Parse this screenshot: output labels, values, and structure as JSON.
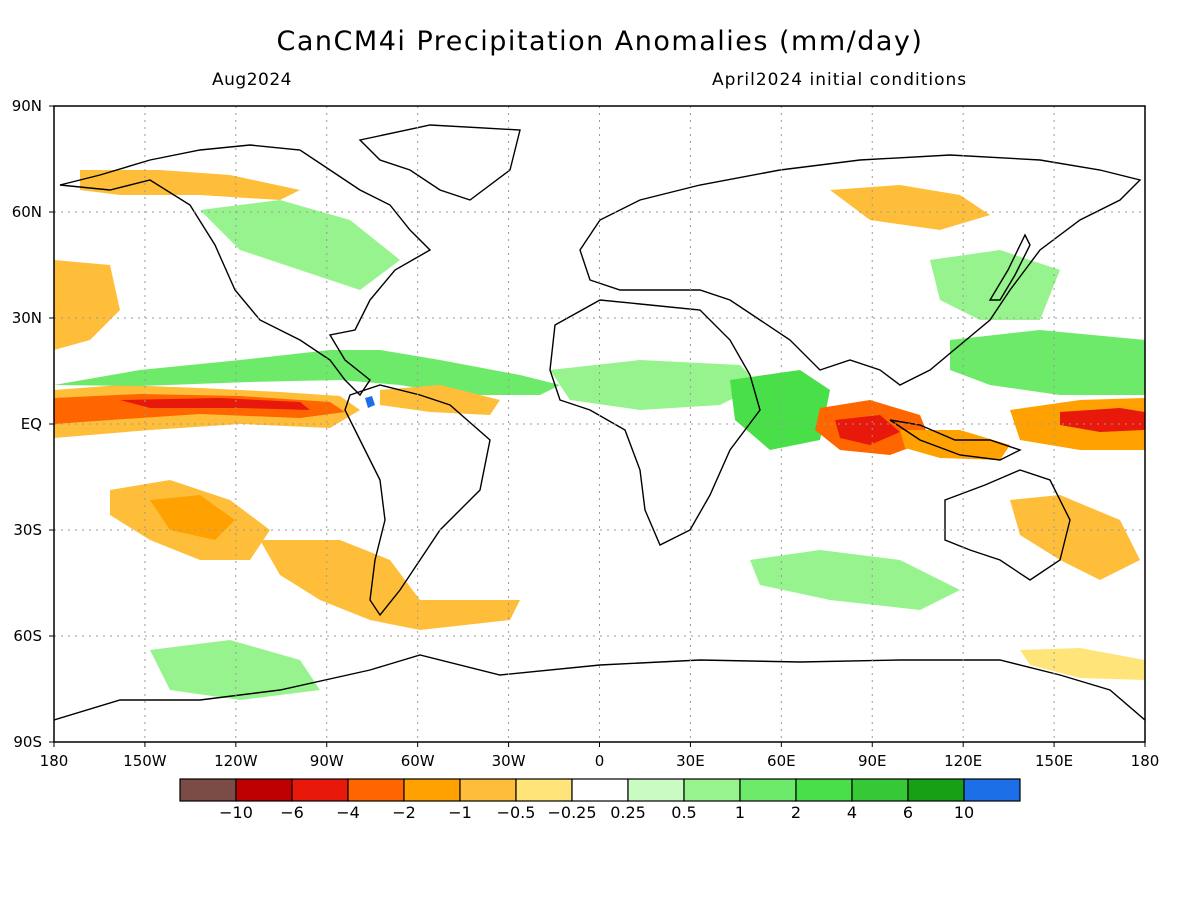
{
  "title": "CanCM4i Precipitation Anomalies (mm/day)",
  "subtitle_left": "Aug2024",
  "subtitle_right": "April2024 initial conditions",
  "lat_labels": [
    "90N",
    "60N",
    "30N",
    "EQ",
    "30S",
    "60S",
    "90S"
  ],
  "lon_labels": [
    "180",
    "150W",
    "120W",
    "90W",
    "60W",
    "30W",
    "0",
    "30E",
    "60E",
    "90E",
    "120E",
    "150E",
    "180"
  ],
  "colorbar": {
    "colors": [
      "#7b4c45",
      "#bf0000",
      "#e8190b",
      "#ff6600",
      "#ffa100",
      "#ffbe3a",
      "#ffe47a",
      "#ffffff",
      "#c9fbc2",
      "#96f38d",
      "#6eea6a",
      "#48df48",
      "#36c837",
      "#17a016",
      "#1d6fe8"
    ],
    "labels": [
      "-10",
      "-6",
      "-4",
      "-2",
      "-1",
      "-0.5",
      "-0.25",
      "0.25",
      "0.5",
      "1",
      "2",
      "4",
      "6",
      "10"
    ]
  },
  "anomaly_colors": {
    "dry_light": "#ffe47a",
    "dry_mid": "#ffbe3a",
    "dry_strong": "#ffa100",
    "dry_heavy": "#ff6600",
    "dry_extreme": "#e8190b",
    "dry_max": "#bf0000",
    "wet_light": "#c9fbc2",
    "wet_mid": "#96f38d",
    "wet_strong": "#6eea6a",
    "wet_heavy": "#48df48",
    "wet_extreme": "#36c837",
    "wet_max": "#17a016",
    "wet_peak": "#1d6fe8"
  }
}
